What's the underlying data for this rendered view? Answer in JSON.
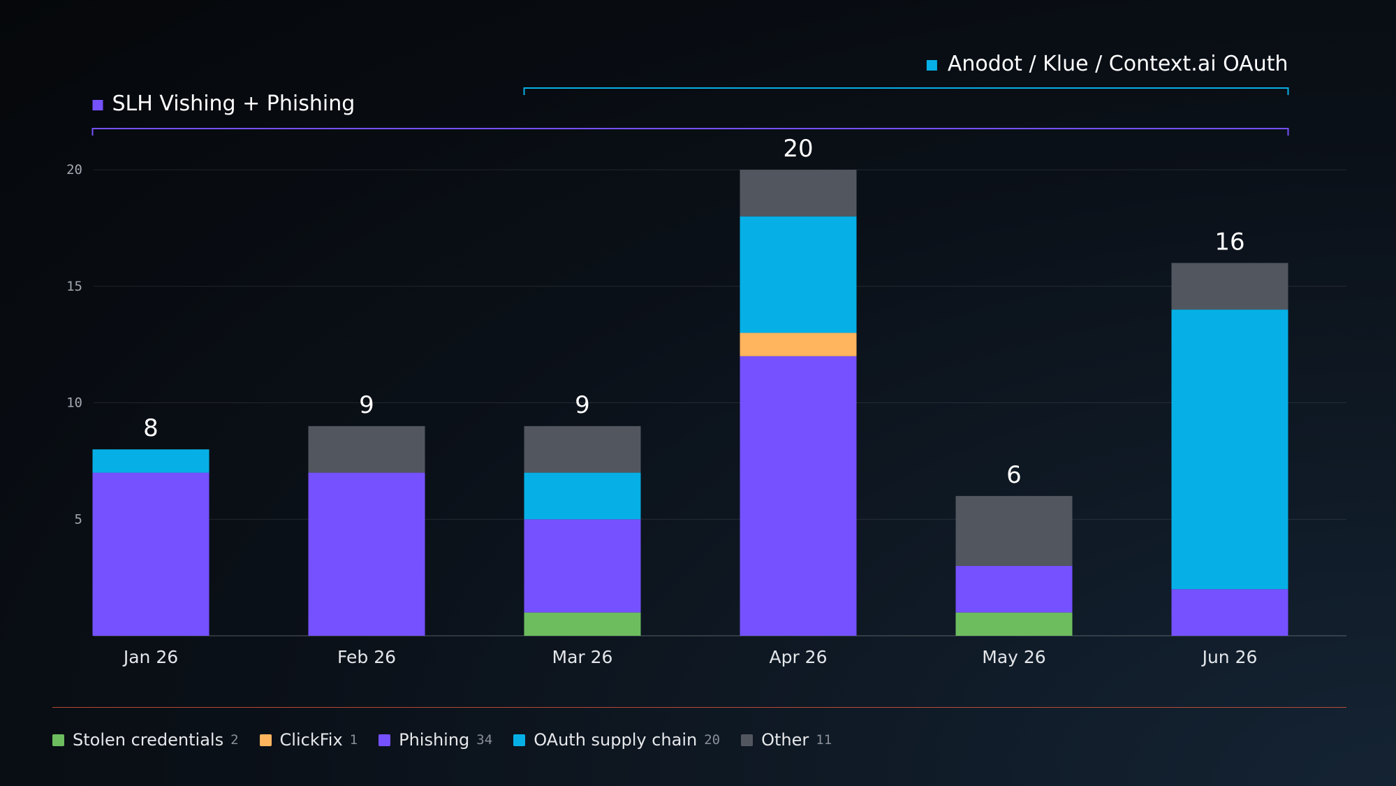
{
  "chart_data": {
    "type": "bar",
    "stacked": true,
    "categories": [
      "Jan 26",
      "Feb 26",
      "Mar 26",
      "Apr 26",
      "May 26",
      "Jun 26"
    ],
    "series": [
      {
        "name": "Stolen credentials",
        "color": "#6dbd5f",
        "values": [
          0,
          0,
          1,
          0,
          1,
          0
        ]
      },
      {
        "name": "Phishing",
        "color": "#7551ff",
        "values": [
          7,
          7,
          4,
          12,
          2,
          2
        ]
      },
      {
        "name": "ClickFix",
        "color": "#ffb45e",
        "values": [
          0,
          0,
          0,
          1,
          0,
          0
        ]
      },
      {
        "name": "OAuth supply chain",
        "color": "#06b0e6",
        "values": [
          1,
          0,
          2,
          5,
          0,
          12
        ]
      },
      {
        "name": "Other",
        "color": "#52565f",
        "values": [
          0,
          2,
          2,
          2,
          3,
          2
        ]
      }
    ],
    "totals": [
      "8",
      "9",
      "9",
      "20",
      "6",
      "16"
    ],
    "yticks": [
      5,
      10,
      15,
      20
    ],
    "ylim": [
      0,
      20
    ],
    "grid": true,
    "annotations": [
      {
        "label": "SLH Vishing + Phishing",
        "color": "#7551ff",
        "from_category": "Jan 26",
        "to_category": "Jun 26"
      },
      {
        "label": "Anodot / Klue / Context.ai OAuth",
        "color": "#06b0e6",
        "from_category": "Mar 26",
        "to_category": "Jun 26"
      }
    ],
    "legend": {
      "position": "bottom-left",
      "items": [
        {
          "name": "Stolen credentials",
          "color": "#6dbd5f",
          "count": "2"
        },
        {
          "name": "ClickFix",
          "color": "#ffb45e",
          "count": "1"
        },
        {
          "name": "Phishing",
          "color": "#7551ff",
          "count": "34"
        },
        {
          "name": "OAuth supply chain",
          "color": "#06b0e6",
          "count": "20"
        },
        {
          "name": "Other",
          "color": "#52565f",
          "count": "11"
        }
      ]
    }
  }
}
